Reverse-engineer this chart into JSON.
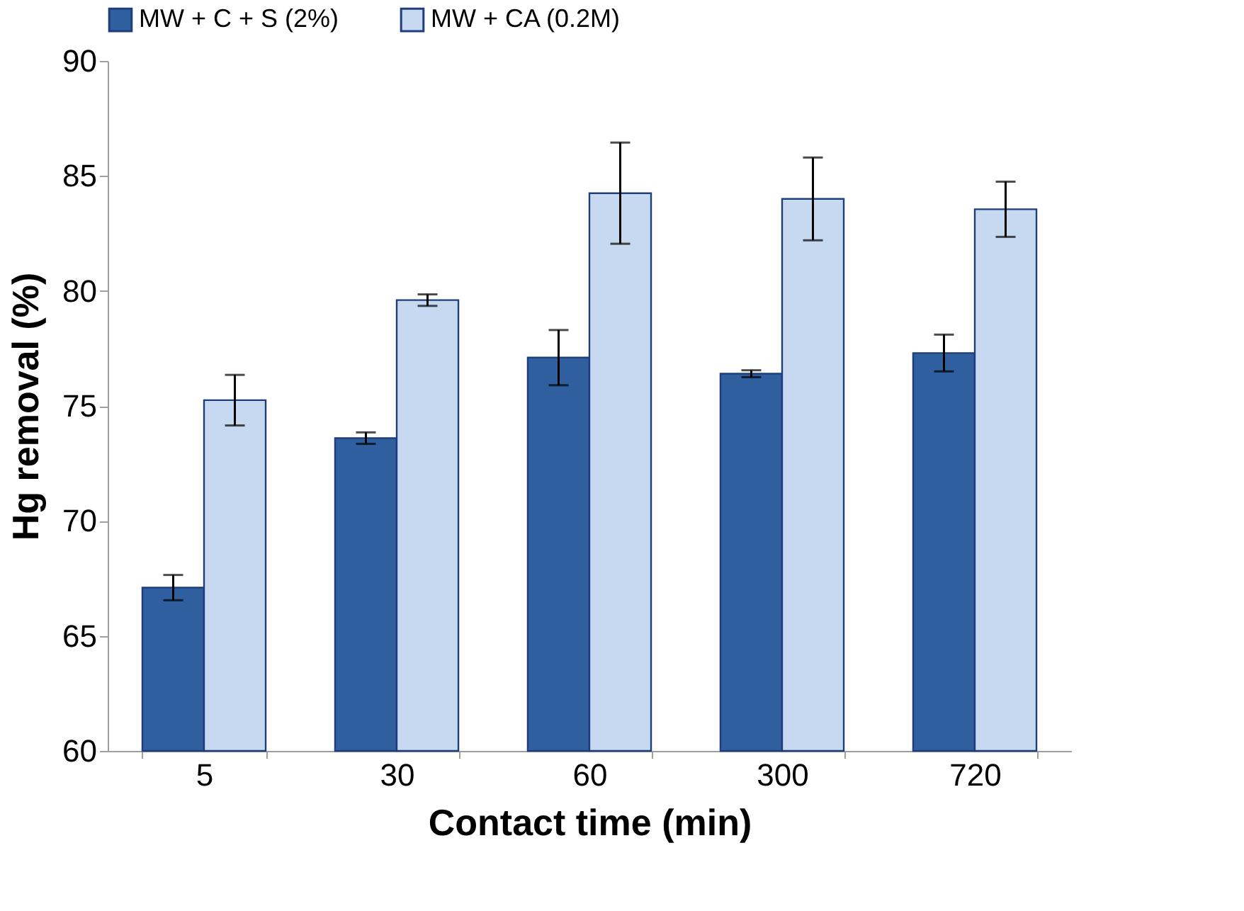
{
  "chart_data": {
    "type": "bar",
    "xlabel": "Contact time (min)",
    "ylabel": "Hg removal (%)",
    "categories": [
      "5",
      "30",
      "60",
      "300",
      "720"
    ],
    "series": [
      {
        "name": "MW + C + S (2%)",
        "color": "#2f5f9e",
        "values": [
          67.1,
          73.6,
          77.1,
          76.4,
          77.3
        ],
        "errors": [
          0.55,
          0.25,
          1.2,
          0.15,
          0.8
        ]
      },
      {
        "name": "MW + CA (0.2M)",
        "color": "#c6d9f0",
        "values": [
          75.25,
          79.6,
          84.25,
          84.0,
          83.55
        ],
        "errors": [
          1.1,
          0.25,
          2.2,
          1.8,
          1.2
        ]
      }
    ],
    "ylim": [
      60,
      90
    ],
    "yticks": [
      60,
      65,
      70,
      75,
      80,
      85,
      90
    ],
    "grid": false,
    "legend": "top"
  }
}
